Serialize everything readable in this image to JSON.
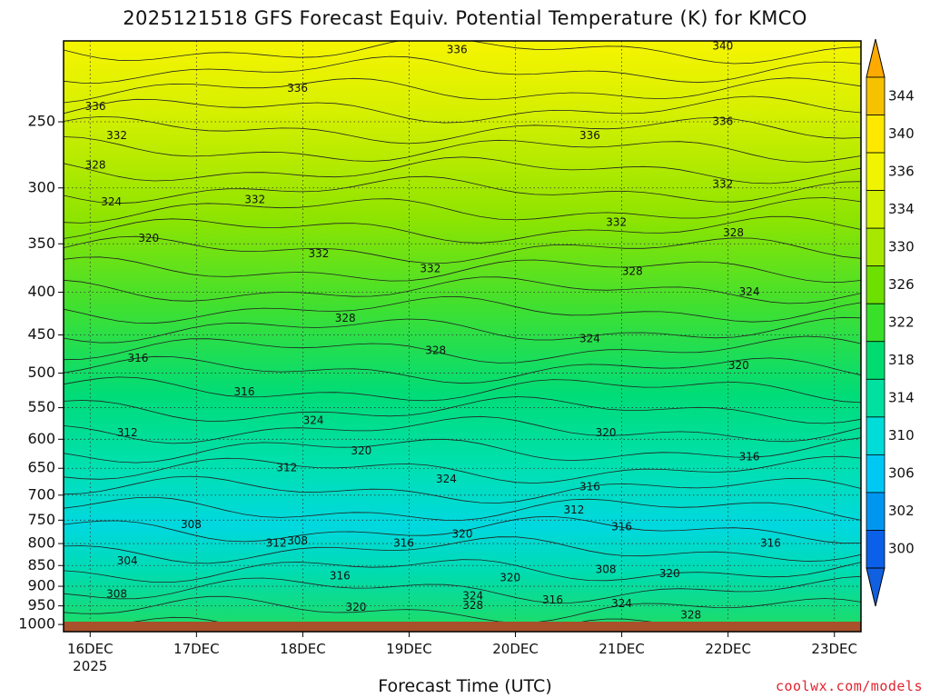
{
  "chart_data": {
    "type": "heatmap",
    "title": "2025121518 GFS Forecast Equiv. Potential Temperature (K) for KMCO",
    "xlabel": "Forecast Time (UTC)",
    "ylabel": "",
    "x_ticks": [
      "16DEC",
      "17DEC",
      "18DEC",
      "19DEC",
      "20DEC",
      "21DEC",
      "22DEC",
      "23DEC"
    ],
    "x_sublabel": "2025",
    "x_range_days": [
      15.75,
      23.25
    ],
    "y_ticks": [
      250,
      300,
      350,
      400,
      450,
      500,
      550,
      600,
      650,
      700,
      750,
      800,
      850,
      900,
      950,
      1000
    ],
    "y_range_hpa": [
      200,
      1020
    ],
    "y_scale": "log",
    "grid": true,
    "colorbar": {
      "levels": [
        300,
        302,
        306,
        310,
        314,
        318,
        322,
        326,
        330,
        334,
        336,
        340,
        344
      ],
      "colors": [
        "#0a60e8",
        "#0096f0",
        "#00c8f5",
        "#00dcd8",
        "#00e0a0",
        "#00dc70",
        "#38e02a",
        "#6ee000",
        "#a8e800",
        "#d2f000",
        "#f0f400",
        "#ffe800",
        "#f5c200"
      ],
      "placement": "right"
    },
    "contour_labels": [
      {
        "value": "336",
        "x": 16.05,
        "p": 240
      },
      {
        "value": "332",
        "x": 16.25,
        "p": 260
      },
      {
        "value": "328",
        "x": 16.05,
        "p": 282
      },
      {
        "value": "324",
        "x": 16.2,
        "p": 312
      },
      {
        "value": "320",
        "x": 16.55,
        "p": 345
      },
      {
        "value": "316",
        "x": 16.45,
        "p": 480
      },
      {
        "value": "312",
        "x": 16.35,
        "p": 590
      },
      {
        "value": "308",
        "x": 16.95,
        "p": 760
      },
      {
        "value": "304",
        "x": 16.35,
        "p": 840
      },
      {
        "value": "308",
        "x": 16.25,
        "p": 920
      },
      {
        "value": "336",
        "x": 17.95,
        "p": 228
      },
      {
        "value": "332",
        "x": 17.55,
        "p": 310
      },
      {
        "value": "332",
        "x": 18.15,
        "p": 360
      },
      {
        "value": "316",
        "x": 17.45,
        "p": 527
      },
      {
        "value": "312",
        "x": 17.85,
        "p": 650
      },
      {
        "value": "312",
        "x": 17.75,
        "p": 800
      },
      {
        "value": "308",
        "x": 17.95,
        "p": 795
      },
      {
        "value": "328",
        "x": 18.4,
        "p": 430
      },
      {
        "value": "324",
        "x": 18.1,
        "p": 570
      },
      {
        "value": "320",
        "x": 18.55,
        "p": 620
      },
      {
        "value": "316",
        "x": 18.95,
        "p": 800
      },
      {
        "value": "316",
        "x": 18.35,
        "p": 875
      },
      {
        "value": "320",
        "x": 18.5,
        "p": 955
      },
      {
        "value": "336",
        "x": 19.45,
        "p": 205
      },
      {
        "value": "332",
        "x": 19.2,
        "p": 375
      },
      {
        "value": "328",
        "x": 19.25,
        "p": 470
      },
      {
        "value": "324",
        "x": 19.35,
        "p": 670
      },
      {
        "value": "320",
        "x": 19.5,
        "p": 780
      },
      {
        "value": "320",
        "x": 19.95,
        "p": 880
      },
      {
        "value": "324",
        "x": 19.6,
        "p": 925
      },
      {
        "value": "328",
        "x": 19.6,
        "p": 950
      },
      {
        "value": "340",
        "x": 21.95,
        "p": 203
      },
      {
        "value": "336",
        "x": 20.7,
        "p": 260
      },
      {
        "value": "336",
        "x": 21.95,
        "p": 250
      },
      {
        "value": "332",
        "x": 20.95,
        "p": 330
      },
      {
        "value": "332",
        "x": 21.95,
        "p": 297
      },
      {
        "value": "328",
        "x": 21.1,
        "p": 378
      },
      {
        "value": "328",
        "x": 22.05,
        "p": 340
      },
      {
        "value": "324",
        "x": 20.7,
        "p": 455
      },
      {
        "value": "324",
        "x": 22.2,
        "p": 400
      },
      {
        "value": "320",
        "x": 20.85,
        "p": 590
      },
      {
        "value": "320",
        "x": 22.1,
        "p": 490
      },
      {
        "value": "316",
        "x": 20.7,
        "p": 685
      },
      {
        "value": "316",
        "x": 22.2,
        "p": 630
      },
      {
        "value": "316",
        "x": 22.4,
        "p": 800
      },
      {
        "value": "312",
        "x": 20.55,
        "p": 730
      },
      {
        "value": "316",
        "x": 21.0,
        "p": 765
      },
      {
        "value": "308",
        "x": 20.85,
        "p": 860
      },
      {
        "value": "320",
        "x": 21.45,
        "p": 870
      },
      {
        "value": "316",
        "x": 20.35,
        "p": 935
      },
      {
        "value": "324",
        "x": 21.0,
        "p": 945
      },
      {
        "value": "328",
        "x": 21.65,
        "p": 975
      }
    ]
  },
  "credit": "coolwx.com/models"
}
